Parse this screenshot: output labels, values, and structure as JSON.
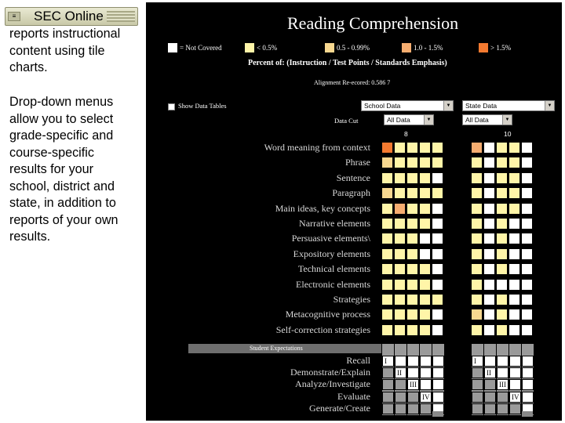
{
  "left_panel": {
    "title": "SEC Online",
    "paragraph_1_lines": [
      "reports instructional",
      "content using tile",
      "charts."
    ],
    "paragraph_2_lines": [
      "Drop-down menus",
      "allow you to select",
      "grade-specific and",
      "course-specific",
      "results for your",
      "school, district and",
      "state, in addition to",
      "reports of your own",
      "results."
    ]
  },
  "report": {
    "title": "Reading Comprehension",
    "legend": [
      {
        "label": "= Not Covered",
        "color": "#ffffff"
      },
      {
        "label": "< 0.5%",
        "color": "#fff5a8"
      },
      {
        "label": "0.5 - 0.99%",
        "color": "#f8d890"
      },
      {
        "label": "1.0 - 1.5%",
        "color": "#f6ad70"
      },
      {
        "label": "> 1.5%",
        "color": "#f47a30"
      }
    ],
    "percent_of": "Percent of: (Instruction / Test Points / Standards Emphasis)",
    "alignment": "Alignment Re-ecored: 0.586 7",
    "show_tables": "Show Data Tables",
    "data_cut_label": "Data Cut",
    "selects": {
      "left_top": "School Data",
      "right_top": "State Data",
      "left_bottom": "All Data",
      "right_bottom": "All Data"
    },
    "grades": [
      "8",
      "10"
    ],
    "topics": [
      "Word meaning from context",
      "Phrase",
      "Sentence",
      "Paragraph",
      "Main ideas, key concepts",
      "Narrative elements",
      "Persuasive elements\\",
      "Expository elements",
      "Technical elements",
      "Electronic elements",
      "Strategies",
      "Metacognitive process",
      "Self-correction strategies"
    ],
    "grid_left": [
      [
        "o4",
        "y1",
        "y1",
        "y1",
        "y1"
      ],
      [
        "y2",
        "y1",
        "y1",
        "y1",
        "y1"
      ],
      [
        "y1",
        "y1",
        "y1",
        "y1",
        "w"
      ],
      [
        "y2",
        "y1",
        "y1",
        "y1",
        "y1"
      ],
      [
        "y1",
        "o3",
        "y1",
        "y1",
        "w"
      ],
      [
        "y1",
        "y1",
        "y1",
        "y1",
        "w"
      ],
      [
        "y1",
        "y1",
        "y1",
        "w",
        "w"
      ],
      [
        "y1",
        "y1",
        "y1",
        "w",
        "w"
      ],
      [
        "y1",
        "y1",
        "y1",
        "y1",
        "w"
      ],
      [
        "y1",
        "y1",
        "y1",
        "y1",
        "w"
      ],
      [
        "y1",
        "y1",
        "y1",
        "y1",
        "y1"
      ],
      [
        "y1",
        "y1",
        "y1",
        "y1",
        "w"
      ],
      [
        "y1",
        "y1",
        "y1",
        "y1",
        "w"
      ]
    ],
    "grid_right": [
      [
        "o3",
        "w",
        "y1",
        "y1",
        "w"
      ],
      [
        "y1",
        "w",
        "y1",
        "y1",
        "w"
      ],
      [
        "y1",
        "w",
        "y1",
        "y1",
        "w"
      ],
      [
        "y1",
        "w",
        "y1",
        "y1",
        "w"
      ],
      [
        "y1",
        "w",
        "y1",
        "y1",
        "w"
      ],
      [
        "y1",
        "w",
        "y1",
        "w",
        "w"
      ],
      [
        "y1",
        "w",
        "y1",
        "w",
        "w"
      ],
      [
        "y1",
        "w",
        "y1",
        "w",
        "w"
      ],
      [
        "y1",
        "w",
        "y1",
        "w",
        "w"
      ],
      [
        "y1",
        "w",
        "w",
        "w",
        "w"
      ],
      [
        "y1",
        "w",
        "y1",
        "w",
        "w"
      ],
      [
        "y2",
        "w",
        "y1",
        "w",
        "w"
      ],
      [
        "y1",
        "w",
        "y1",
        "w",
        "w"
      ]
    ],
    "student_expectations_label": "Student Expectations",
    "expectations": [
      "Recall",
      "Demonstrate/Explain",
      "Analyze/Investigate",
      "Evaluate",
      "Generate/Create"
    ],
    "roman_left": [
      "I",
      "II",
      "III",
      "IV"
    ],
    "roman_right": [
      "I",
      "II",
      "III",
      "IV"
    ],
    "colors": {
      "w": "#ffffff",
      "y1": "#fff5a8",
      "y2": "#f8d890",
      "o3": "#f6ad70",
      "o4": "#f47a30"
    }
  }
}
